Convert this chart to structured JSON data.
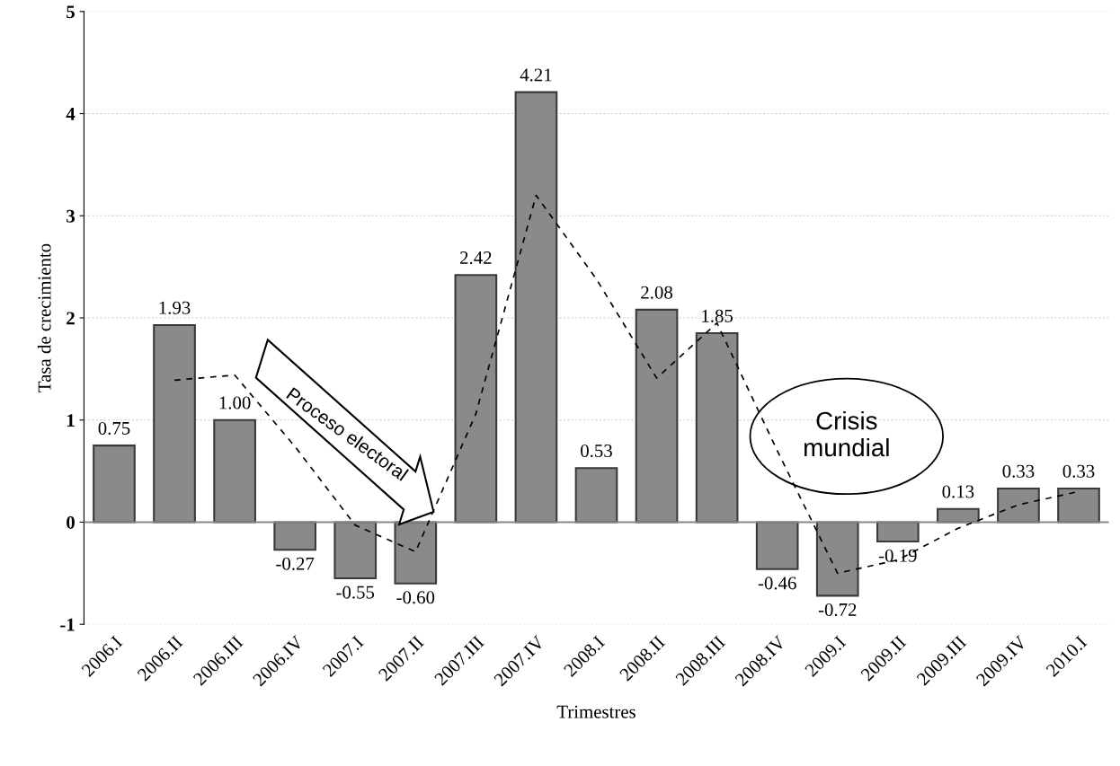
{
  "chart_data": {
    "type": "bar",
    "xlabel": "Trimestres",
    "ylabel": "Tasa de crecimiento",
    "categories": [
      "2006.I",
      "2006.II",
      "2006.III",
      "2006.IV",
      "2007.I",
      "2007.II",
      "2007.III",
      "2007.IV",
      "2008.I",
      "2008.II",
      "2008.III",
      "2008.IV",
      "2009.I",
      "2009.II",
      "2009.III",
      "2009.IV",
      "2010.I"
    ],
    "series": [
      {
        "color": "#8a8a8a",
        "values": [
          0.75,
          1.93,
          1.0,
          -0.27,
          -0.55,
          -0.6,
          2.42,
          4.21,
          0.53,
          2.08,
          1.85,
          -0.46,
          -0.72,
          -0.19,
          0.13,
          0.33,
          0.33
        ],
        "value_labels": [
          "0.75",
          "1.93",
          "1.00",
          "-0.27",
          "-0.55",
          "-0.60",
          "2.42",
          "4.21",
          "0.53",
          "2.08",
          "1.85",
          "-0.46",
          "-0.72",
          "-0.19",
          "0.13",
          "0.33",
          "0.33"
        ]
      },
      {
        "type": "line",
        "color": "#000000",
        "line_style": "dashed",
        "values": [
          null,
          1.39,
          1.44,
          0.74,
          -0.03,
          -0.29,
          1.06,
          3.2,
          2.38,
          1.41,
          1.95,
          0.7,
          -0.5,
          -0.37,
          -0.06,
          0.17,
          0.3
        ]
      }
    ],
    "ylim": [
      -1,
      5
    ],
    "yticks": [
      -1,
      0,
      1,
      2,
      3,
      4,
      5
    ],
    "grid": "y",
    "annotations": [
      "Proceso electoral",
      "Crisis mundial"
    ]
  }
}
